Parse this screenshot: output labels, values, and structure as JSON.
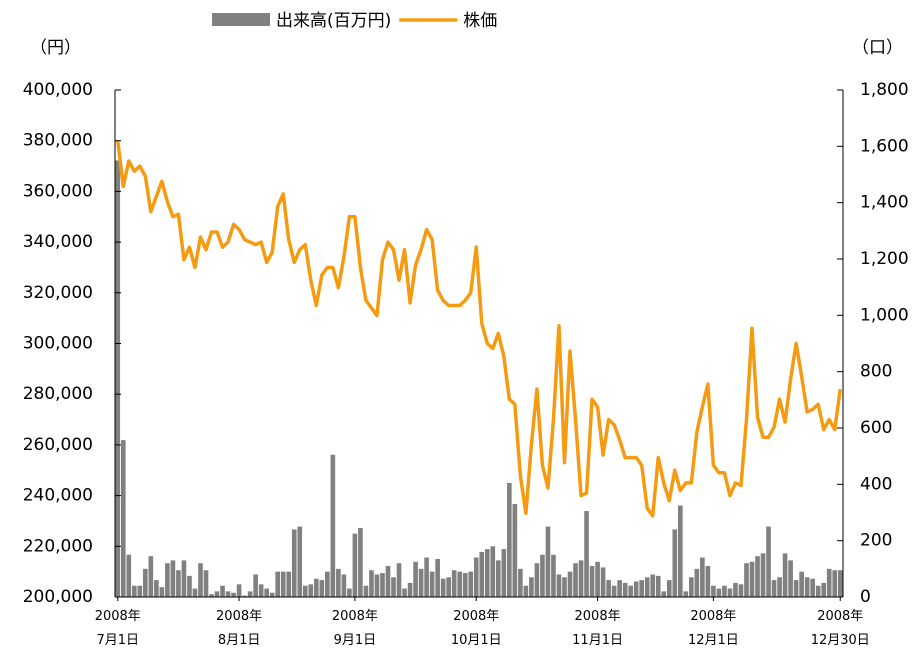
{
  "chart_data": {
    "type": "bar-line",
    "y_label": "（円）",
    "y2_label": "（口）",
    "categories": [
      "2008年\n7月1日",
      null,
      null,
      null,
      null,
      null,
      null,
      null,
      null,
      null,
      null,
      null,
      null,
      null,
      null,
      null,
      null,
      null,
      null,
      null,
      null,
      null,
      "2008年\n8月1日",
      null,
      null,
      null,
      null,
      null,
      null,
      null,
      null,
      null,
      null,
      null,
      null,
      null,
      null,
      null,
      null,
      null,
      null,
      null,
      null,
      "2008年\n9月1日",
      null,
      null,
      null,
      null,
      null,
      null,
      null,
      null,
      null,
      null,
      null,
      null,
      null,
      null,
      null,
      null,
      null,
      null,
      null,
      null,
      null,
      "2008年\n10月1日",
      null,
      null,
      null,
      null,
      null,
      null,
      null,
      null,
      null,
      null,
      null,
      null,
      null,
      null,
      null,
      null,
      null,
      null,
      null,
      null,
      null,
      "2008年\n11月1日",
      null,
      null,
      null,
      null,
      null,
      null,
      null,
      null,
      null,
      null,
      null,
      null,
      null,
      null,
      null,
      null,
      null,
      null,
      null,
      null,
      "2008年\n12月1日",
      null,
      null,
      null,
      null,
      null,
      null,
      null,
      null,
      null,
      null,
      null,
      null,
      null,
      null,
      null,
      null,
      null,
      null,
      null,
      null,
      null,
      null,
      "2008年\n12月30日"
    ],
    "series": [
      {
        "name": "出来高(百万円)",
        "type": "bar",
        "axis": "y2",
        "color": "#808080",
        "values": [
          1550,
          557,
          150,
          40,
          40,
          100,
          145,
          60,
          35,
          120,
          130,
          95,
          130,
          75,
          30,
          120,
          95,
          10,
          20,
          40,
          20,
          15,
          45,
          5,
          20,
          80,
          45,
          30,
          15,
          90,
          90,
          90,
          240,
          250,
          40,
          45,
          65,
          60,
          90,
          505,
          100,
          80,
          30,
          225,
          245,
          40,
          95,
          80,
          85,
          110,
          70,
          120,
          30,
          50,
          125,
          100,
          140,
          90,
          135,
          65,
          70,
          95,
          90,
          85,
          90,
          140,
          160,
          170,
          180,
          130,
          170,
          405,
          330,
          100,
          40,
          70,
          120,
          150,
          250,
          150,
          80,
          70,
          90,
          120,
          130,
          305,
          110,
          125,
          105,
          60,
          40,
          60,
          50,
          40,
          55,
          60,
          70,
          80,
          75,
          20,
          60,
          240,
          325,
          20,
          70,
          100,
          140,
          110,
          40,
          30,
          40,
          30,
          50,
          45,
          120,
          125,
          145,
          155,
          250,
          60,
          70,
          155,
          130,
          60,
          90,
          70,
          65,
          40,
          50,
          100,
          95,
          95
        ]
      },
      {
        "name": "株価",
        "type": "line",
        "axis": "y",
        "color": "#f59b12",
        "values": [
          380000,
          362000,
          372000,
          368000,
          370000,
          366000,
          352000,
          358000,
          364000,
          356000,
          350000,
          351000,
          333000,
          338000,
          330000,
          342000,
          337000,
          344000,
          344000,
          338000,
          340000,
          347000,
          345000,
          341000,
          340000,
          339000,
          340000,
          332000,
          336000,
          354000,
          359000,
          341000,
          332000,
          337000,
          339000,
          325000,
          315000,
          327000,
          330000,
          330000,
          322000,
          334000,
          350000,
          350000,
          330000,
          317000,
          314000,
          311000,
          333000,
          340000,
          337000,
          325000,
          337000,
          316000,
          331000,
          337000,
          345000,
          341000,
          321000,
          317000,
          315000,
          315000,
          315000,
          317000,
          320000,
          338000,
          308000,
          300000,
          298000,
          304000,
          295000,
          278000,
          276000,
          248000,
          233000,
          260000,
          282000,
          252000,
          243000,
          270000,
          307000,
          253000,
          297000,
          270000,
          240000,
          241000,
          278000,
          275000,
          256000,
          270000,
          268000,
          262000,
          255000,
          255000,
          255000,
          252000,
          235000,
          232000,
          255000,
          245000,
          238000,
          250000,
          242000,
          245000,
          245000,
          265000,
          275000,
          284000,
          252000,
          249000,
          249000,
          240000,
          245000,
          244000,
          270000,
          306000,
          271000,
          263000,
          263000,
          267000,
          278000,
          269000,
          286000,
          300000,
          287000,
          273000,
          274000,
          276000,
          266000,
          270000,
          266000,
          282000
        ]
      }
    ],
    "ylim": [
      200000,
      400000
    ],
    "yticks": [
      {
        "value": 200000,
        "label": "200,000"
      },
      {
        "value": 220000,
        "label": "220,000"
      },
      {
        "value": 240000,
        "label": "240,000"
      },
      {
        "value": 260000,
        "label": "260,000"
      },
      {
        "value": 280000,
        "label": "280,000"
      },
      {
        "value": 300000,
        "label": "300,000"
      },
      {
        "value": 320000,
        "label": "320,000"
      },
      {
        "value": 340000,
        "label": "340,000"
      },
      {
        "value": 360000,
        "label": "360,000"
      },
      {
        "value": 380000,
        "label": "380,000"
      },
      {
        "value": 400000,
        "label": "400,000"
      }
    ],
    "y2lim": [
      0,
      1800
    ],
    "y2ticks": [
      0,
      200,
      400,
      600,
      800,
      {
        "value": 1000,
        "label": "1,000"
      },
      {
        "value": 1200,
        "label": "1,200"
      },
      {
        "value": 1400,
        "label": "1,400"
      },
      {
        "value": 1600,
        "label": "1,600"
      },
      {
        "value": 1800,
        "label": "1,800"
      }
    ],
    "grid": false,
    "legend": "top"
  }
}
